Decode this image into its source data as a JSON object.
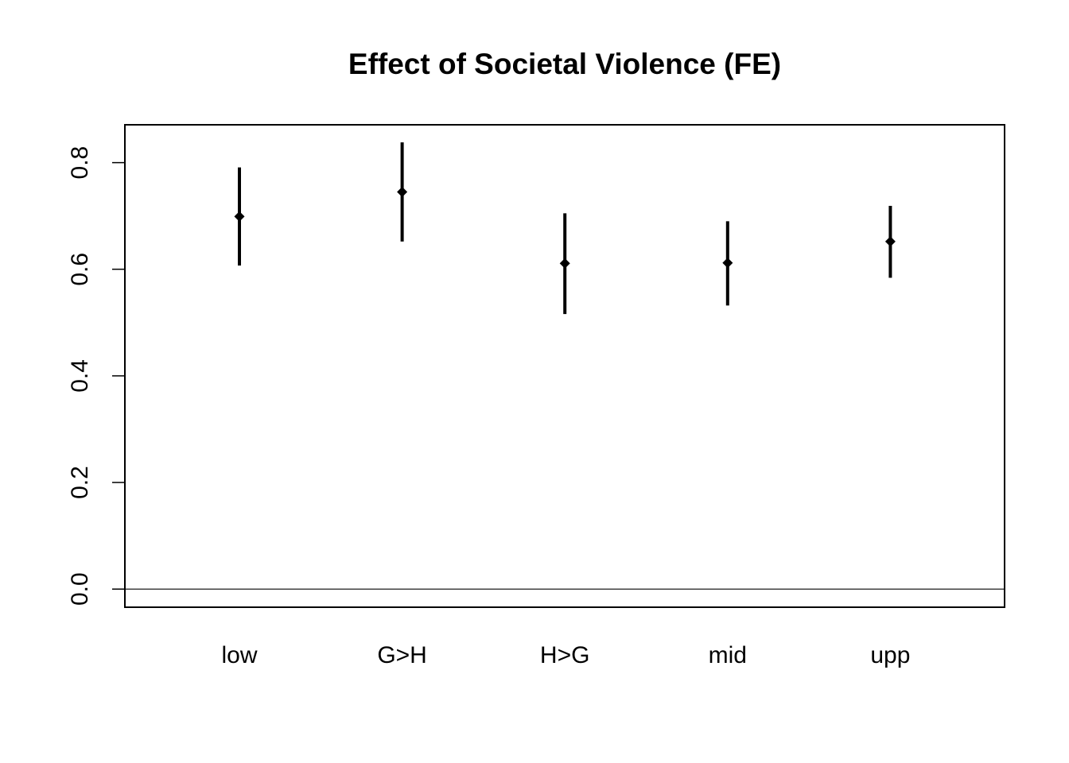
{
  "chart_data": {
    "type": "scatter",
    "title": "Effect of Societal Violence (FE)",
    "xlabel": "",
    "ylabel": "",
    "categories": [
      "low",
      "G>H",
      "H>G",
      "mid",
      "upp"
    ],
    "series": [
      {
        "estimates": [
          0.699,
          0.745,
          0.611,
          0.612,
          0.652
        ],
        "lower": [
          0.607,
          0.652,
          0.516,
          0.532,
          0.584
        ],
        "upper": [
          0.791,
          0.838,
          0.705,
          0.69,
          0.719
        ]
      }
    ],
    "yticks": [
      0.0,
      0.2,
      0.4,
      0.6,
      0.8
    ],
    "ytick_labels": [
      "0.0",
      "0.2",
      "0.4",
      "0.6",
      "0.8"
    ],
    "ylim": [
      -0.034,
      0.871
    ],
    "reference_line": 0,
    "grid": false,
    "legend": "none",
    "colors": {
      "marks": "#000000",
      "axis": "#000000",
      "background": "#ffffff"
    }
  }
}
